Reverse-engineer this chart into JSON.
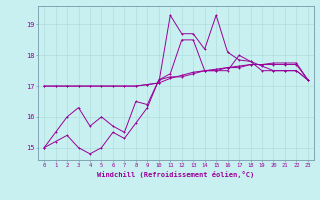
{
  "xlabel": "Windchill (Refroidissement éolien,°C)",
  "bg_color": "#c8f0f0",
  "line_color": "#990099",
  "grid_color": "#b0dede",
  "xlim": [
    -0.5,
    23.5
  ],
  "ylim": [
    14.6,
    19.6
  ],
  "xticks": [
    0,
    1,
    2,
    3,
    4,
    5,
    6,
    7,
    8,
    9,
    10,
    11,
    12,
    13,
    14,
    15,
    16,
    17,
    18,
    19,
    20,
    21,
    22,
    23
  ],
  "yticks": [
    15,
    16,
    17,
    18,
    19
  ],
  "line1_x": [
    0,
    1,
    2,
    3,
    4,
    5,
    6,
    7,
    8,
    9,
    10,
    11,
    12,
    13,
    14,
    15,
    16,
    17,
    18,
    19,
    20,
    21,
    22,
    23
  ],
  "line1_y": [
    15.0,
    15.2,
    15.4,
    15.0,
    14.8,
    15.0,
    15.5,
    15.3,
    15.8,
    16.3,
    17.2,
    17.4,
    18.5,
    18.5,
    17.5,
    17.5,
    17.5,
    18.0,
    17.8,
    17.5,
    17.5,
    17.5,
    17.5,
    17.2
  ],
  "line2_x": [
    0,
    1,
    2,
    3,
    4,
    5,
    6,
    7,
    8,
    9,
    10,
    11,
    12,
    13,
    14,
    15,
    16,
    17,
    18,
    19,
    20,
    21,
    22,
    23
  ],
  "line2_y": [
    17.0,
    17.0,
    17.0,
    17.0,
    17.0,
    17.0,
    17.0,
    17.0,
    17.0,
    17.05,
    17.1,
    19.3,
    18.7,
    18.7,
    18.2,
    19.3,
    18.1,
    17.85,
    17.8,
    17.65,
    17.5,
    17.5,
    17.5,
    17.2
  ],
  "line3_x": [
    0,
    1,
    2,
    3,
    4,
    5,
    6,
    7,
    8,
    9,
    10,
    11,
    12,
    13,
    14,
    15,
    16,
    17,
    18,
    19,
    20,
    21,
    22,
    23
  ],
  "line3_y": [
    17.0,
    17.0,
    17.0,
    17.0,
    17.0,
    17.0,
    17.0,
    17.0,
    17.0,
    17.05,
    17.1,
    17.25,
    17.35,
    17.45,
    17.5,
    17.55,
    17.6,
    17.65,
    17.7,
    17.7,
    17.75,
    17.75,
    17.75,
    17.2
  ],
  "line4_x": [
    0,
    1,
    2,
    3,
    4,
    5,
    6,
    7,
    8,
    9,
    10,
    11,
    12,
    13,
    14,
    15,
    16,
    17,
    18,
    19,
    20,
    21,
    22,
    23
  ],
  "line4_y": [
    15.0,
    15.5,
    16.0,
    16.3,
    15.7,
    16.0,
    15.7,
    15.5,
    16.5,
    16.4,
    17.2,
    17.3,
    17.3,
    17.4,
    17.5,
    17.5,
    17.6,
    17.6,
    17.7,
    17.7,
    17.7,
    17.7,
    17.7,
    17.2
  ]
}
